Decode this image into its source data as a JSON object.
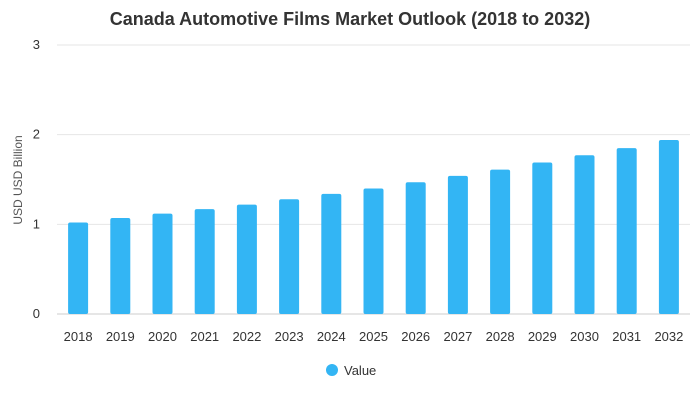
{
  "chart_data": {
    "type": "bar",
    "title": "Canada Automotive Films Market Outlook (2018 to 2032)",
    "xlabel": "",
    "ylabel": "USD USD Billion",
    "ylim": [
      0,
      3
    ],
    "yticks": [
      0,
      1,
      2,
      3
    ],
    "grid": true,
    "legend_position": "bottom",
    "categories": [
      "2018",
      "2019",
      "2020",
      "2021",
      "2022",
      "2023",
      "2024",
      "2025",
      "2026",
      "2027",
      "2028",
      "2029",
      "2030",
      "2031",
      "2032"
    ],
    "series": [
      {
        "name": "Value",
        "color": "#33b5f4",
        "values": [
          1.02,
          1.07,
          1.12,
          1.17,
          1.22,
          1.28,
          1.34,
          1.4,
          1.47,
          1.54,
          1.61,
          1.69,
          1.77,
          1.85,
          1.94
        ]
      }
    ]
  }
}
